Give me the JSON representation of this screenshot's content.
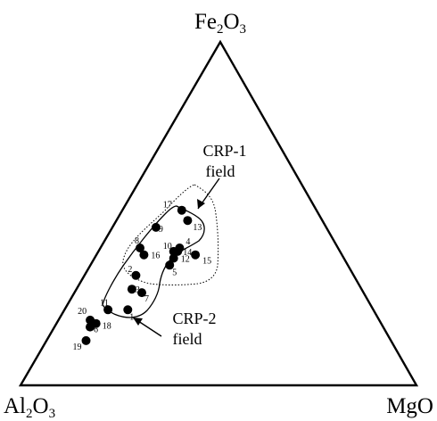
{
  "chart_data": {
    "type": "scatter",
    "subtype": "ternary",
    "title": "",
    "vertices": {
      "top": {
        "base": "Fe",
        "sub1": "2",
        "mid": "O",
        "sub2": "3",
        "text": "Fe2O3"
      },
      "left": {
        "base": "Al",
        "sub1": "2",
        "mid": "O",
        "sub2": "3",
        "text": "Al2O3"
      },
      "right": {
        "base": "MgO",
        "text": "MgO"
      }
    },
    "fields": [
      {
        "name_line1": "CRP-1",
        "name_line2": "field",
        "style": "dotted"
      },
      {
        "name_line1": "CRP-2",
        "name_line2": "field",
        "style": "solid"
      }
    ],
    "points": [
      {
        "label": "1",
        "Al2O3": 0.62,
        "Fe2O3": 0.22,
        "MgO": 0.16
      },
      {
        "label": "2",
        "Al2O3": 0.55,
        "Fe2O3": 0.32,
        "MgO": 0.13
      },
      {
        "label": "3",
        "Al2O3": 0.58,
        "Fe2O3": 0.28,
        "MgO": 0.14
      },
      {
        "label": "4",
        "Al2O3": 0.4,
        "Fe2O3": 0.4,
        "MgO": 0.2
      },
      {
        "label": "5",
        "Al2O3": 0.45,
        "Fe2O3": 0.35,
        "MgO": 0.2
      },
      {
        "label": "6",
        "Al2O3": 0.74,
        "Fe2O3": 0.17,
        "MgO": 0.09
      },
      {
        "label": "7",
        "Al2O3": 0.56,
        "Fe2O3": 0.27,
        "MgO": 0.17
      },
      {
        "label": "8",
        "Al2O3": 0.5,
        "Fe2O3": 0.4,
        "MgO": 0.1
      },
      {
        "label": "9",
        "Al2O3": 0.43,
        "Fe2O3": 0.46,
        "MgO": 0.11
      },
      {
        "label": "10",
        "Al2O3": 0.42,
        "Fe2O3": 0.39,
        "MgO": 0.19
      },
      {
        "label": "11",
        "Al2O3": 0.67,
        "Fe2O3": 0.22,
        "MgO": 0.11
      },
      {
        "label": "12",
        "Al2O3": 0.43,
        "Fe2O3": 0.37,
        "MgO": 0.2
      },
      {
        "label": "13",
        "Al2O3": 0.34,
        "Fe2O3": 0.48,
        "MgO": 0.18
      },
      {
        "label": "14",
        "Al2O3": 0.41,
        "Fe2O3": 0.39,
        "MgO": 0.2
      },
      {
        "label": "15",
        "Al2O3": 0.37,
        "Fe2O3": 0.38,
        "MgO": 0.25
      },
      {
        "label": "16",
        "Al2O3": 0.5,
        "Fe2O3": 0.38,
        "MgO": 0.12
      },
      {
        "label": "17",
        "Al2O3": 0.34,
        "Fe2O3": 0.51,
        "MgO": 0.15
      },
      {
        "label": "18",
        "Al2O3": 0.72,
        "Fe2O3": 0.18,
        "MgO": 0.1
      },
      {
        "label": "19",
        "Al2O3": 0.77,
        "Fe2O3": 0.13,
        "MgO": 0.1
      },
      {
        "label": "20",
        "Al2O3": 0.73,
        "Fe2O3": 0.19,
        "MgO": 0.08
      }
    ],
    "grid": false,
    "legend": "none"
  }
}
